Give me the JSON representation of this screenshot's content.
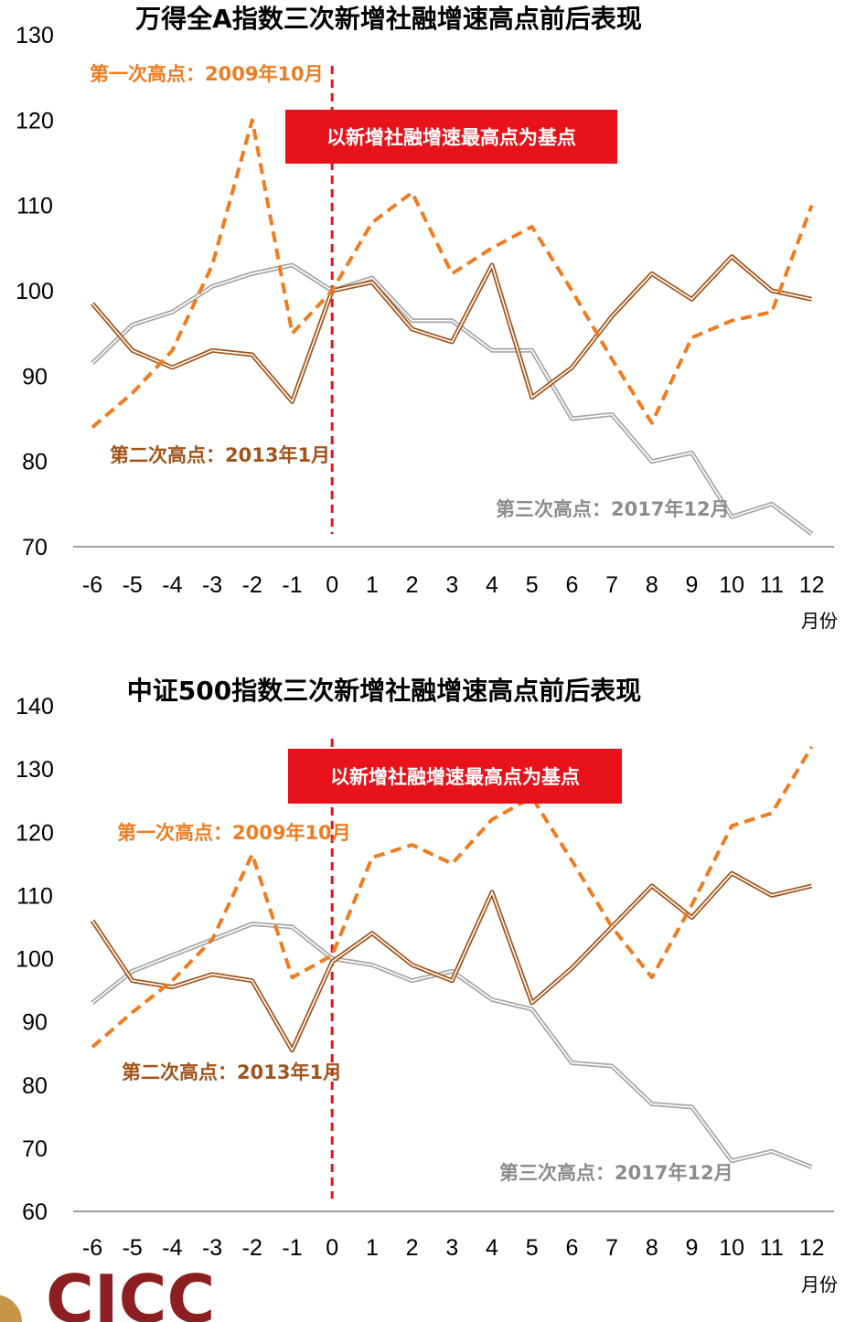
{
  "chart_data": [
    {
      "type": "line",
      "title": "万得全A指数三次新增社融增速高点前后表现",
      "banner": "以新增社融增速最高点为基点",
      "xlabel": "月份",
      "ylim": [
        70,
        130
      ],
      "yticks": [
        70,
        80,
        90,
        100,
        110,
        120,
        130
      ],
      "x": [
        -6,
        -5,
        -4,
        -3,
        -2,
        -1,
        0,
        1,
        2,
        3,
        4,
        5,
        6,
        7,
        8,
        9,
        10,
        11,
        12
      ],
      "series": [
        {
          "name": "第一次高点：2009年10月",
          "values": [
            84,
            88,
            93,
            103,
            120,
            95,
            100,
            108,
            111.5,
            102,
            105,
            107.5,
            100,
            92,
            84.5,
            94.5,
            96.5,
            97.5,
            110
          ],
          "color": "#ee7d22",
          "style": "dashed"
        },
        {
          "name": "第二次高点：2013年1月",
          "values": [
            98.5,
            93,
            91,
            93,
            92.5,
            87,
            100,
            101,
            95.5,
            94,
            103,
            87.5,
            91,
            97,
            102,
            99,
            104,
            100,
            99
          ],
          "color": "#a0541b",
          "style": "double"
        },
        {
          "name": "第三次高点：2017年12月",
          "values": [
            91.5,
            96,
            97.5,
            100.5,
            102,
            103,
            100,
            101.5,
            96.5,
            96.5,
            93,
            93,
            85,
            85.5,
            80,
            81,
            73.5,
            75,
            71.5
          ],
          "color": "#a6a6a6",
          "style": "double"
        }
      ],
      "annotations": [
        {
          "text": "第一次高点：2009年10月",
          "color": "#ee7d22"
        },
        {
          "text": "第二次高点：2013年1月",
          "color": "#a0541b"
        },
        {
          "text": "第三次高点：2017年12月",
          "color": "#8c8c8c"
        }
      ]
    },
    {
      "type": "line",
      "title": "中证500指数三次新增社融增速高点前后表现",
      "banner": "以新增社融增速最高点为基点",
      "xlabel": "月份",
      "ylim": [
        60,
        140
      ],
      "yticks": [
        60,
        70,
        80,
        90,
        100,
        110,
        120,
        130,
        140
      ],
      "x": [
        -6,
        -5,
        -4,
        -3,
        -2,
        -1,
        0,
        1,
        2,
        3,
        4,
        5,
        6,
        7,
        8,
        9,
        10,
        11,
        12
      ],
      "series": [
        {
          "name": "第一次高点：2009年10月",
          "values": [
            86,
            91.5,
            96.5,
            103,
            116.5,
            97,
            100.5,
            116,
            118,
            115,
            122,
            125.5,
            115.5,
            105,
            97,
            108.5,
            121,
            123,
            133.5
          ],
          "color": "#ee7d22",
          "style": "dashed"
        },
        {
          "name": "第二次高点：2013年1月",
          "values": [
            106,
            96.5,
            95.5,
            97.5,
            96.5,
            85.5,
            99.5,
            104,
            99,
            96.5,
            110.5,
            93,
            98.5,
            105,
            111.5,
            106.5,
            113.5,
            110,
            111.5
          ],
          "color": "#a0541b",
          "style": "double"
        },
        {
          "name": "第三次高点：2017年12月",
          "values": [
            93,
            98,
            100.5,
            103,
            105.5,
            105,
            100,
            99,
            96.5,
            98,
            93.5,
            92,
            83.5,
            83,
            77,
            76.5,
            68,
            69.5,
            67
          ],
          "color": "#a6a6a6",
          "style": "double"
        }
      ],
      "annotations": [
        {
          "text": "第一次高点：2009年10月",
          "color": "#ee7d22"
        },
        {
          "text": "第二次高点：2013年1月",
          "color": "#a0541b"
        },
        {
          "text": "第三次高点：2017年12月",
          "color": "#8c8c8c"
        }
      ]
    }
  ],
  "logo": {
    "text": "CICC",
    "color": "#8c1f22",
    "emblem_color": "#c8944a"
  },
  "colors": {
    "baseline": "#e8121b",
    "banner": "#e8121b",
    "axis": "#808080"
  }
}
